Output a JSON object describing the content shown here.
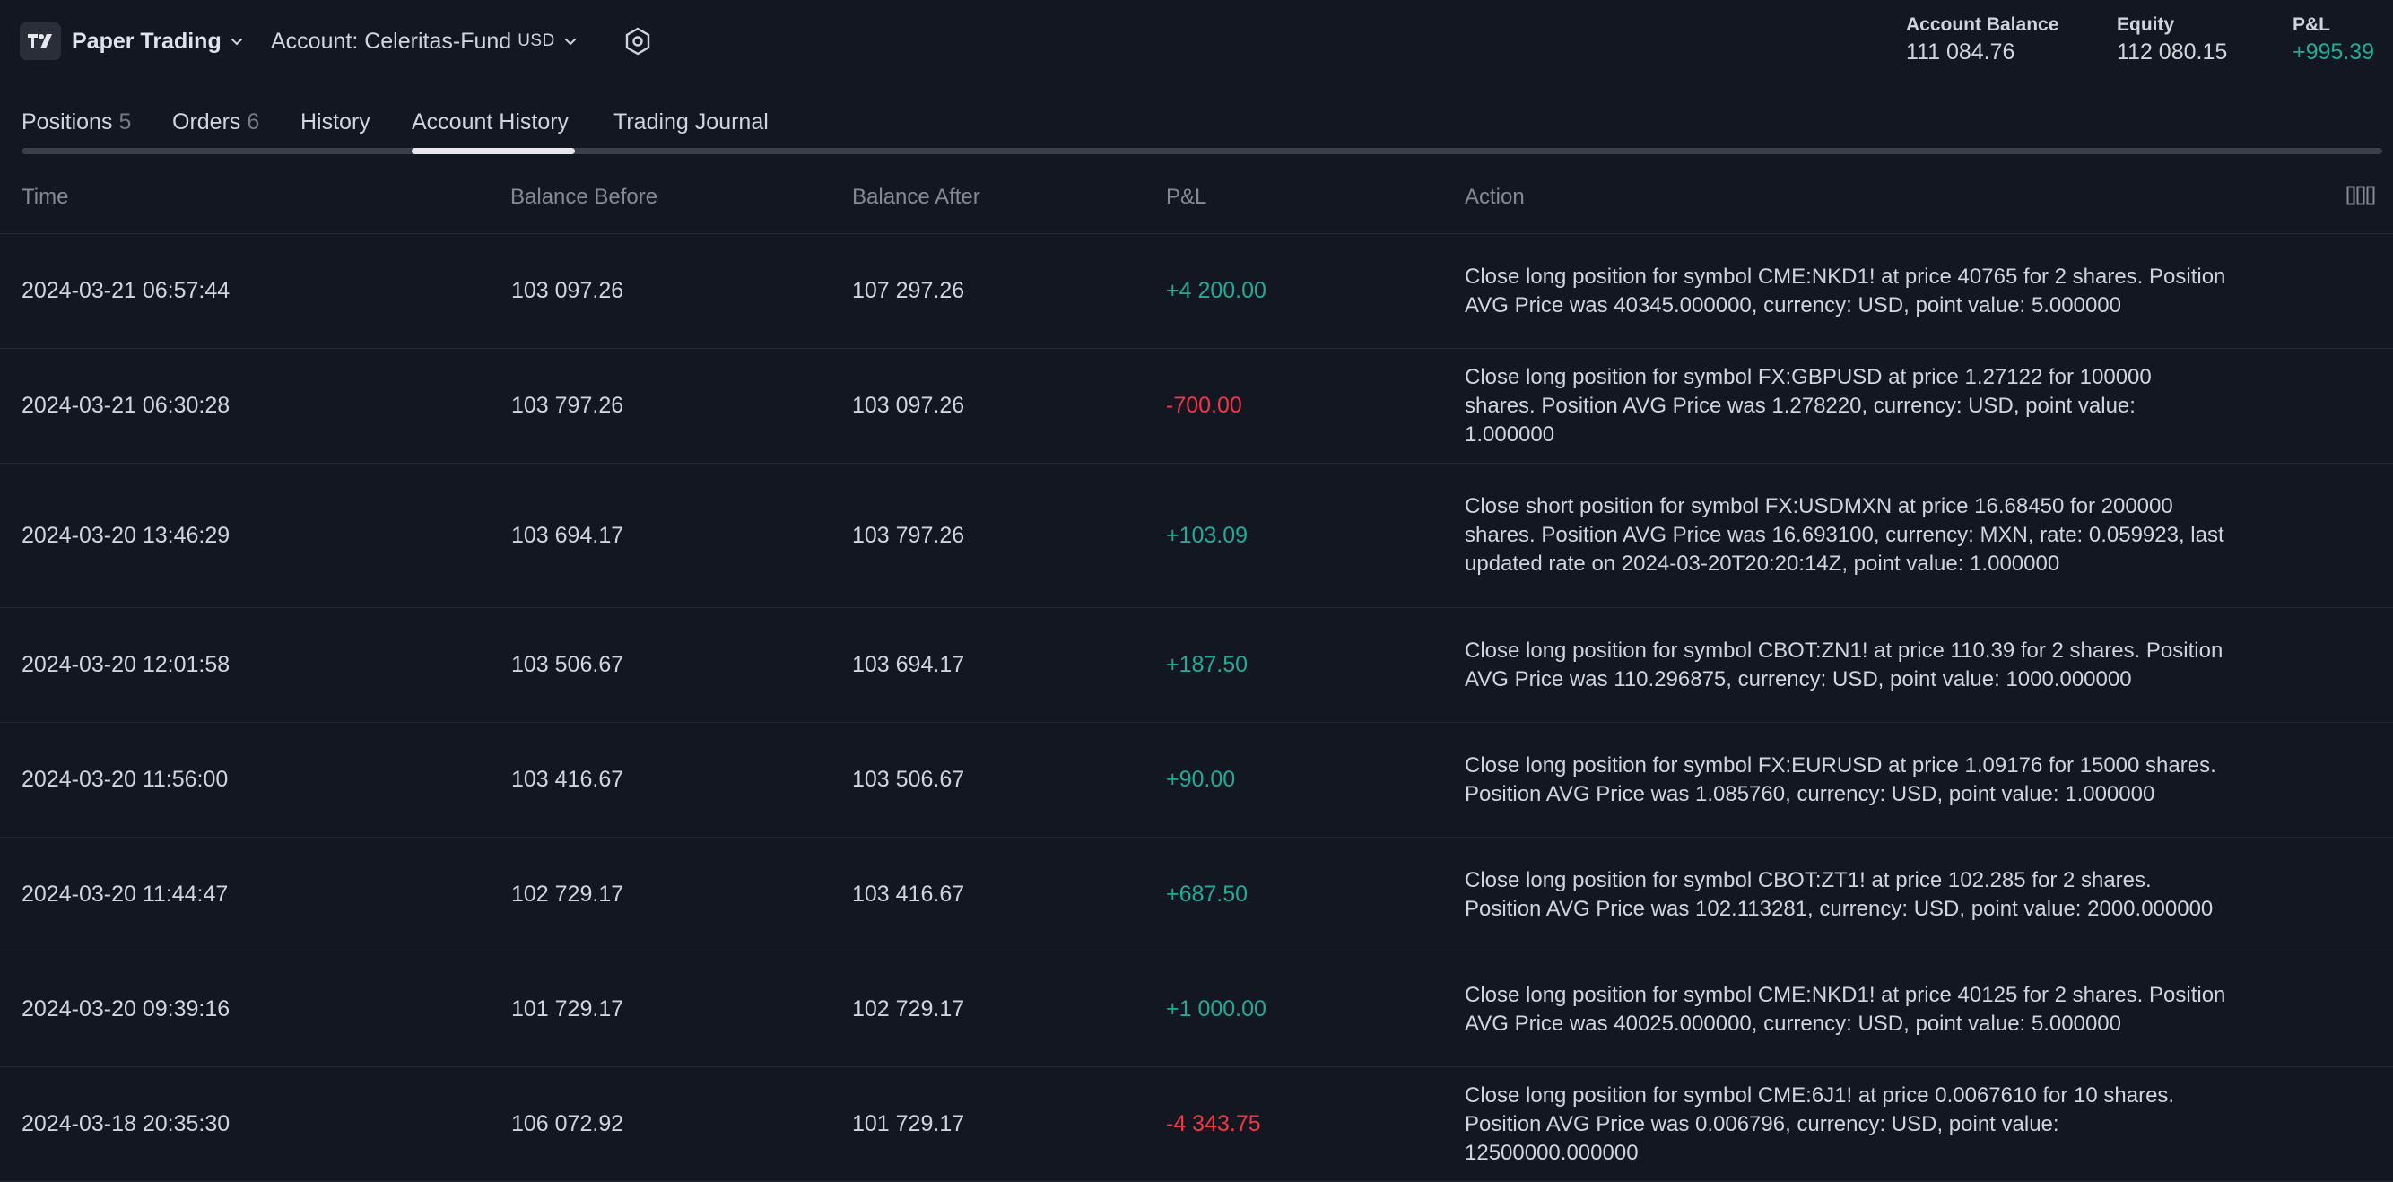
{
  "header": {
    "brand": "Paper Trading",
    "account_label": "Account: Celeritas-Fund",
    "account_currency": "USD",
    "metrics": [
      {
        "label": "Account Balance",
        "value": "111 084.76",
        "tone": "neutral"
      },
      {
        "label": "Equity",
        "value": "112 080.15",
        "tone": "neutral"
      },
      {
        "label": "P&L",
        "value": "+995.39",
        "tone": "positive"
      }
    ],
    "icons": {
      "logo": "tradingview-logo-icon",
      "settings": "settings-gear-icon",
      "dropdown": "chevron-down-icon"
    }
  },
  "tabs": [
    {
      "label": "Positions",
      "count": "5"
    },
    {
      "label": "Orders",
      "count": "6"
    },
    {
      "label": "History",
      "count": ""
    },
    {
      "label": "Account History",
      "count": "",
      "active": true
    },
    {
      "label": "Trading Journal",
      "count": ""
    }
  ],
  "table": {
    "columns": [
      "Time",
      "Balance Before",
      "Balance After",
      "P&L",
      "Action"
    ],
    "rows": [
      {
        "time": "2024-03-21 06:57:44",
        "balance_before": "103 097.26",
        "balance_after": "107 297.26",
        "pnl": "+4 200.00",
        "pnl_sign": "positive",
        "action": "Close long position for symbol CME:NKD1! at price 40765 for 2 shares. Position AVG Price was 40345.000000, currency: USD, point value: 5.000000"
      },
      {
        "time": "2024-03-21 06:30:28",
        "balance_before": "103 797.26",
        "balance_after": "103 097.26",
        "pnl": "-700.00",
        "pnl_sign": "negative",
        "action": "Close long position for symbol FX:GBPUSD at price 1.27122 for 100000 shares. Position AVG Price was 1.278220, currency: USD, point value: 1.000000"
      },
      {
        "time": "2024-03-20 13:46:29",
        "balance_before": "103 694.17",
        "balance_after": "103 797.26",
        "pnl": "+103.09",
        "pnl_sign": "positive",
        "action": "Close short position for symbol FX:USDMXN at price 16.68450 for 200000 shares. Position AVG Price was 16.693100, currency: MXN, rate: 0.059923, last updated rate on 2024-03-20T20:20:14Z, point value: 1.000000"
      },
      {
        "time": "2024-03-20 12:01:58",
        "balance_before": "103 506.67",
        "balance_after": "103 694.17",
        "pnl": "+187.50",
        "pnl_sign": "positive",
        "action": "Close long position for symbol CBOT:ZN1! at price 110.39 for 2 shares. Position AVG Price was 110.296875, currency: USD, point value: 1000.000000"
      },
      {
        "time": "2024-03-20 11:56:00",
        "balance_before": "103 416.67",
        "balance_after": "103 506.67",
        "pnl": "+90.00",
        "pnl_sign": "positive",
        "action": "Close long position for symbol FX:EURUSD at price 1.09176 for 15000 shares. Position AVG Price was 1.085760, currency: USD, point value: 1.000000"
      },
      {
        "time": "2024-03-20 11:44:47",
        "balance_before": "102 729.17",
        "balance_after": "103 416.67",
        "pnl": "+687.50",
        "pnl_sign": "positive",
        "action": "Close long position for symbol CBOT:ZT1! at price 102.285 for 2 shares. Position AVG Price was 102.113281, currency: USD, point value: 2000.000000"
      },
      {
        "time": "2024-03-20 09:39:16",
        "balance_before": "101 729.17",
        "balance_after": "102 729.17",
        "pnl": "+1 000.00",
        "pnl_sign": "positive",
        "action": "Close long position for symbol CME:NKD1! at price 40125 for 2 shares. Position AVG Price was 40025.000000, currency: USD, point value: 5.000000"
      },
      {
        "time": "2024-03-18 20:35:30",
        "balance_before": "106 072.92",
        "balance_after": "101 729.17",
        "pnl": "-4 343.75",
        "pnl_sign": "negative",
        "action": "Close long position for symbol CME:6J1! at price 0.0067610 for 10 shares. Position AVG Price was 0.006796, currency: USD, point value: 12500000.000000"
      }
    ]
  },
  "colors": {
    "background": "#131722",
    "text": "#d1d4dc",
    "muted": "#868993",
    "positive": "#22ab94",
    "negative": "#f23645",
    "divider": "#262a35"
  }
}
